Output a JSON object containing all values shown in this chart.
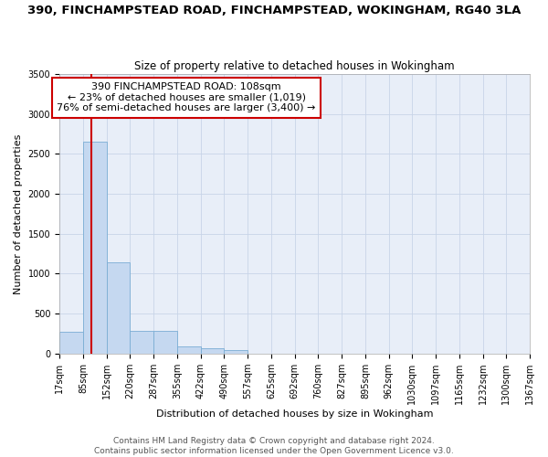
{
  "title_line1": "390, FINCHAMPSTEAD ROAD, FINCHAMPSTEAD, WOKINGHAM, RG40 3LA",
  "title_line2": "Size of property relative to detached houses in Wokingham",
  "xlabel": "Distribution of detached houses by size in Wokingham",
  "ylabel": "Number of detached properties",
  "bin_labels": [
    "17sqm",
    "85sqm",
    "152sqm",
    "220sqm",
    "287sqm",
    "355sqm",
    "422sqm",
    "490sqm",
    "557sqm",
    "625sqm",
    "692sqm",
    "760sqm",
    "827sqm",
    "895sqm",
    "962sqm",
    "1030sqm",
    "1097sqm",
    "1165sqm",
    "1232sqm",
    "1300sqm",
    "1367sqm"
  ],
  "bin_edges": [
    17,
    85,
    152,
    220,
    287,
    355,
    422,
    490,
    557,
    625,
    692,
    760,
    827,
    895,
    962,
    1030,
    1097,
    1165,
    1232,
    1300,
    1367
  ],
  "bar_heights": [
    270,
    2650,
    1140,
    285,
    285,
    90,
    60,
    40,
    0,
    0,
    0,
    0,
    0,
    0,
    0,
    0,
    0,
    0,
    0,
    0
  ],
  "bar_color": "#c5d8f0",
  "bar_edge_color": "#7aadd4",
  "grid_color": "#c8d4e8",
  "background_color": "#e8eef8",
  "property_size": 108,
  "property_line_color": "#cc0000",
  "annotation_text": "390 FINCHAMPSTEAD ROAD: 108sqm\n← 23% of detached houses are smaller (1,019)\n76% of semi-detached houses are larger (3,400) →",
  "annotation_box_color": "#cc0000",
  "ylim": [
    0,
    3500
  ],
  "yticks": [
    0,
    500,
    1000,
    1500,
    2000,
    2500,
    3000,
    3500
  ],
  "footer_line1": "Contains HM Land Registry data © Crown copyright and database right 2024.",
  "footer_line2": "Contains public sector information licensed under the Open Government Licence v3.0.",
  "title_fontsize": 9.5,
  "subtitle_fontsize": 8.5,
  "axis_label_fontsize": 8,
  "tick_fontsize": 7,
  "annotation_fontsize": 8,
  "footer_fontsize": 6.5
}
